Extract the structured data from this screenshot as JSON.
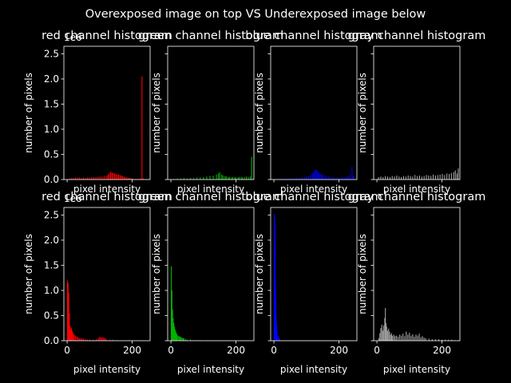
{
  "figure": {
    "suptitle": "Overexposed image on top VS Underexposed image below",
    "background": "#000000",
    "foreground": "#ffffff"
  },
  "chart_data": [
    {
      "type": "bar",
      "title": "red channel histogram",
      "xlabel": "pixel intensity",
      "ylabel": "number of pixels",
      "xlim": [
        -10,
        255
      ],
      "ylim": [
        0,
        2.65
      ],
      "y_offset_label": "1e6",
      "color": "#ff0000",
      "x": [
        8,
        14,
        20,
        26,
        32,
        38,
        44,
        50,
        56,
        62,
        68,
        74,
        80,
        86,
        92,
        98,
        104,
        110,
        116,
        122,
        126,
        130,
        134,
        138,
        142,
        146,
        150,
        154,
        158,
        162,
        166,
        170,
        174,
        178,
        182,
        186,
        190,
        194,
        198,
        202,
        206,
        210,
        214,
        218,
        222,
        226,
        230,
        234
      ],
      "values": [
        0.02,
        0.03,
        0.03,
        0.04,
        0.04,
        0.04,
        0.03,
        0.04,
        0.03,
        0.04,
        0.04,
        0.05,
        0.05,
        0.05,
        0.05,
        0.06,
        0.06,
        0.06,
        0.07,
        0.08,
        0.1,
        0.13,
        0.15,
        0.14,
        0.13,
        0.12,
        0.11,
        0.1,
        0.1,
        0.09,
        0.08,
        0.07,
        0.06,
        0.05,
        0.04,
        0.04,
        0.03,
        0.03,
        0.02,
        0.02,
        0.01,
        0.01,
        0.01,
        0.01,
        0.01,
        0.02,
        2.05,
        0.02
      ]
    },
    {
      "type": "bar",
      "title": "green channel histogram",
      "xlabel": "pixel intensity",
      "ylabel": "number of pixels",
      "xlim": [
        -10,
        255
      ],
      "ylim": [
        0,
        2.65
      ],
      "color": "#00b400",
      "x": [
        10,
        20,
        30,
        40,
        50,
        60,
        70,
        80,
        90,
        100,
        110,
        120,
        130,
        140,
        146,
        150,
        156,
        160,
        166,
        170,
        176,
        180,
        186,
        190,
        196,
        200,
        206,
        210,
        216,
        220,
        226,
        232,
        238,
        244,
        248
      ],
      "values": [
        0.01,
        0.02,
        0.02,
        0.03,
        0.02,
        0.03,
        0.03,
        0.04,
        0.04,
        0.05,
        0.06,
        0.07,
        0.08,
        0.1,
        0.12,
        0.14,
        0.1,
        0.08,
        0.07,
        0.06,
        0.05,
        0.05,
        0.04,
        0.05,
        0.05,
        0.04,
        0.04,
        0.05,
        0.05,
        0.04,
        0.05,
        0.06,
        0.05,
        0.06,
        0.45
      ]
    },
    {
      "type": "bar",
      "title": "blue channel histogram",
      "xlabel": "pixel intensity",
      "ylabel": "number of pixels",
      "xlim": [
        -10,
        255
      ],
      "ylim": [
        0,
        2.65
      ],
      "color": "#0000ff",
      "x": [
        6,
        14,
        22,
        30,
        38,
        46,
        54,
        62,
        70,
        78,
        86,
        94,
        100,
        106,
        112,
        118,
        122,
        126,
        130,
        134,
        138,
        142,
        146,
        150,
        156,
        162,
        168,
        174,
        180,
        186,
        192,
        198,
        204,
        210,
        216,
        222,
        228,
        234,
        240,
        244
      ],
      "values": [
        0.01,
        0.01,
        0.02,
        0.02,
        0.02,
        0.02,
        0.03,
        0.03,
        0.03,
        0.04,
        0.05,
        0.05,
        0.06,
        0.07,
        0.09,
        0.12,
        0.16,
        0.18,
        0.2,
        0.17,
        0.14,
        0.12,
        0.1,
        0.09,
        0.08,
        0.07,
        0.06,
        0.05,
        0.05,
        0.04,
        0.04,
        0.04,
        0.04,
        0.04,
        0.05,
        0.06,
        0.07,
        0.1,
        0.25,
        0.08
      ]
    },
    {
      "type": "bar",
      "title": "gray channel histogram",
      "xlabel": "pixel intensity",
      "ylabel": "number of pixels",
      "xlim": [
        -10,
        255
      ],
      "ylim": [
        0,
        2.65
      ],
      "color": "#a0a0a0",
      "x": [
        5,
        12,
        19,
        26,
        33,
        40,
        47,
        54,
        61,
        68,
        75,
        82,
        89,
        96,
        103,
        110,
        117,
        124,
        131,
        138,
        145,
        152,
        159,
        166,
        173,
        180,
        187,
        194,
        201,
        208,
        215,
        222,
        229,
        236,
        241,
        246,
        250
      ],
      "values": [
        0.05,
        0.06,
        0.05,
        0.07,
        0.06,
        0.05,
        0.07,
        0.06,
        0.08,
        0.06,
        0.05,
        0.07,
        0.06,
        0.08,
        0.07,
        0.06,
        0.09,
        0.07,
        0.08,
        0.06,
        0.07,
        0.09,
        0.08,
        0.07,
        0.1,
        0.08,
        0.09,
        0.1,
        0.11,
        0.09,
        0.12,
        0.11,
        0.13,
        0.15,
        0.18,
        0.12,
        0.22
      ]
    },
    {
      "type": "bar",
      "title": "red channel histogram",
      "xlabel": "pixel intensity",
      "ylabel": "number of pixels",
      "xlim": [
        -10,
        255
      ],
      "ylim": [
        0,
        2.65
      ],
      "y_offset_label": "1e6",
      "xticks": [
        0,
        200
      ],
      "color": "#ff0000",
      "x": [
        1,
        3,
        5,
        7,
        9,
        11,
        13,
        16,
        19,
        22,
        26,
        30,
        34,
        38,
        42,
        46,
        50,
        56,
        62,
        70,
        80,
        90,
        96,
        100,
        104,
        108,
        112,
        116,
        120,
        130,
        140,
        150,
        170,
        190
      ],
      "values": [
        1.2,
        1.15,
        0.95,
        0.55,
        0.3,
        0.22,
        0.26,
        0.2,
        0.15,
        0.12,
        0.1,
        0.08,
        0.07,
        0.05,
        0.05,
        0.04,
        0.04,
        0.03,
        0.02,
        0.02,
        0.02,
        0.03,
        0.05,
        0.08,
        0.06,
        0.07,
        0.06,
        0.05,
        0.03,
        0.02,
        0.02,
        0.01,
        0.01,
        0.01
      ]
    },
    {
      "type": "bar",
      "title": "green channel histogram",
      "xlabel": "pixel intensity",
      "ylabel": "number of pixels",
      "xlim": [
        -10,
        255
      ],
      "ylim": [
        0,
        2.65
      ],
      "xticks": [
        0,
        200
      ],
      "color": "#00b400",
      "x": [
        1,
        3,
        5,
        7,
        9,
        11,
        13,
        15,
        17,
        19,
        22,
        25,
        28,
        31,
        34,
        37,
        40,
        45,
        50,
        60,
        70,
        80,
        90
      ],
      "values": [
        1.48,
        1.0,
        0.62,
        0.45,
        0.35,
        0.28,
        0.22,
        0.18,
        0.15,
        0.12,
        0.1,
        0.09,
        0.08,
        0.07,
        0.06,
        0.05,
        0.05,
        0.03,
        0.02,
        0.02,
        0.01,
        0.01,
        0.01
      ]
    },
    {
      "type": "bar",
      "title": "blue channel histogram",
      "xlabel": "pixel intensity",
      "ylabel": "number of pixels",
      "xlim": [
        -10,
        255
      ],
      "ylim": [
        0,
        2.65
      ],
      "xticks": [
        0,
        200
      ],
      "color": "#0000ff",
      "x": [
        1,
        2,
        3,
        4,
        5,
        6,
        7,
        8,
        9,
        10,
        12,
        14,
        16,
        18
      ],
      "values": [
        2.52,
        2.45,
        2.3,
        1.8,
        1.2,
        0.8,
        0.5,
        0.35,
        0.25,
        0.15,
        0.1,
        0.07,
        0.05,
        0.03
      ]
    },
    {
      "type": "bar",
      "title": "gray channel histogram",
      "xlabel": "pixel intensity",
      "ylabel": "number of pixels",
      "xlim": [
        -10,
        255
      ],
      "ylim": [
        0,
        2.65
      ],
      "xticks": [
        0,
        200
      ],
      "color": "#a0a0a0",
      "x": [
        6,
        9,
        12,
        15,
        18,
        21,
        24,
        26,
        28,
        30,
        33,
        36,
        39,
        42,
        45,
        48,
        52,
        56,
        60,
        65,
        70,
        75,
        80,
        85,
        90,
        95,
        100,
        105,
        110,
        115,
        120,
        125,
        130,
        135,
        140,
        145,
        150,
        160,
        170,
        180,
        190,
        200,
        210,
        220,
        230,
        240,
        250
      ],
      "values": [
        0.05,
        0.15,
        0.25,
        0.32,
        0.2,
        0.3,
        0.45,
        0.65,
        0.35,
        0.28,
        0.2,
        0.24,
        0.18,
        0.12,
        0.15,
        0.1,
        0.12,
        0.09,
        0.1,
        0.08,
        0.12,
        0.1,
        0.14,
        0.09,
        0.18,
        0.12,
        0.16,
        0.1,
        0.13,
        0.08,
        0.12,
        0.1,
        0.14,
        0.07,
        0.09,
        0.06,
        0.05,
        0.04,
        0.03,
        0.03,
        0.03,
        0.02,
        0.02,
        0.02,
        0.02,
        0.01,
        0.01
      ]
    }
  ]
}
